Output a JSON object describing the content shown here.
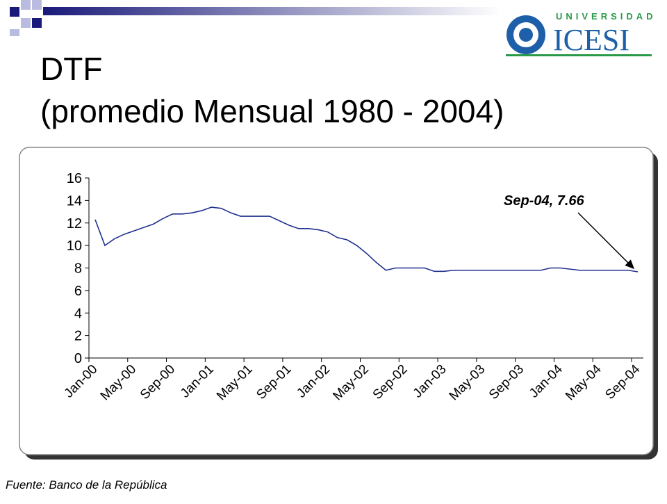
{
  "title": "DTF",
  "subtitle": "(promedio Mensual 1980 - 2004)",
  "logo": {
    "top": "UNIVERSIDAD",
    "name": "ICESI"
  },
  "source": "Fuente:  Banco de la República",
  "chart_data": {
    "type": "line",
    "categories": [
      "Jan-00",
      null,
      null,
      null,
      "May-00",
      null,
      null,
      null,
      "Sep-00",
      null,
      null,
      null,
      "Jan-01",
      null,
      null,
      null,
      "May-01",
      null,
      null,
      null,
      "Sep-01",
      null,
      null,
      null,
      "Jan-02",
      null,
      null,
      null,
      "May-02",
      null,
      null,
      null,
      "Sep-02",
      null,
      null,
      null,
      "Jan-03",
      null,
      null,
      null,
      "May-03",
      null,
      null,
      null,
      "Sep-03",
      null,
      null,
      null,
      "Jan-04",
      null,
      null,
      null,
      "May-04",
      null,
      null,
      null,
      "Sep-04"
    ],
    "values": [
      12.3,
      10.0,
      10.6,
      11.0,
      11.3,
      11.6,
      11.9,
      12.4,
      12.8,
      12.8,
      12.9,
      13.1,
      13.4,
      13.3,
      12.9,
      12.6,
      12.6,
      12.6,
      12.6,
      12.2,
      11.8,
      11.5,
      11.5,
      11.4,
      11.2,
      10.7,
      10.5,
      10.0,
      9.3,
      8.5,
      7.8,
      8.0,
      8.0,
      8.0,
      8.0,
      7.7,
      7.7,
      7.8,
      7.8,
      7.8,
      7.8,
      7.8,
      7.8,
      7.8,
      7.8,
      7.8,
      7.8,
      8.0,
      8.0,
      7.9,
      7.8,
      7.8,
      7.8,
      7.8,
      7.8,
      7.8,
      7.66
    ],
    "color": "#1f2f8f",
    "ylim": [
      0,
      16
    ],
    "yticks": [
      0,
      2,
      4,
      6,
      8,
      10,
      12,
      14,
      16
    ],
    "annotation": "Sep-04, 7.66"
  }
}
